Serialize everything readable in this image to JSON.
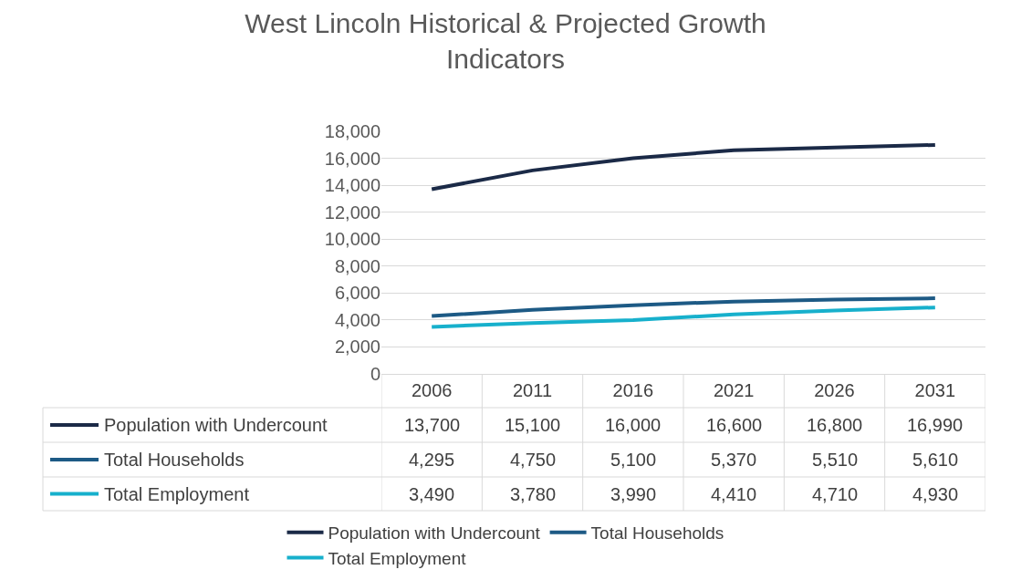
{
  "chart_data": {
    "type": "line",
    "title": "West Lincoln Historical & Projected Growth Indicators",
    "categories": [
      "2006",
      "2011",
      "2016",
      "2021",
      "2026",
      "2031"
    ],
    "series": [
      {
        "name": "Population with Undercount",
        "color": "#1b2a47",
        "values": [
          13700,
          15100,
          16000,
          16600,
          16800,
          16990
        ],
        "value_labels": [
          "13,700",
          "15,100",
          "16,000",
          "16,600",
          "16,800",
          "16,990"
        ]
      },
      {
        "name": "Total Households",
        "color": "#1d5a85",
        "values": [
          4295,
          4750,
          5100,
          5370,
          5510,
          5610
        ],
        "value_labels": [
          "4,295",
          "4,750",
          "5,100",
          "5,370",
          "5,510",
          "5,610"
        ]
      },
      {
        "name": "Total Employment",
        "color": "#17b0cc",
        "values": [
          3490,
          3780,
          3990,
          4410,
          4710,
          4930
        ],
        "value_labels": [
          "3,490",
          "3,780",
          "3,990",
          "4,410",
          "4,710",
          "4,930"
        ]
      }
    ],
    "ylim": [
      0,
      18000
    ],
    "yticks": [
      {
        "value": 0,
        "label": "0"
      },
      {
        "value": 2000,
        "label": "2,000"
      },
      {
        "value": 4000,
        "label": "4,000"
      },
      {
        "value": 6000,
        "label": "6,000"
      },
      {
        "value": 8000,
        "label": "8,000"
      },
      {
        "value": 10000,
        "label": "10,000"
      },
      {
        "value": 12000,
        "label": "12,000"
      },
      {
        "value": 14000,
        "label": "14,000"
      },
      {
        "value": 16000,
        "label": "16,000"
      },
      {
        "value": 18000,
        "label": "18,000"
      }
    ],
    "grid": "y",
    "legend": "bottom"
  }
}
